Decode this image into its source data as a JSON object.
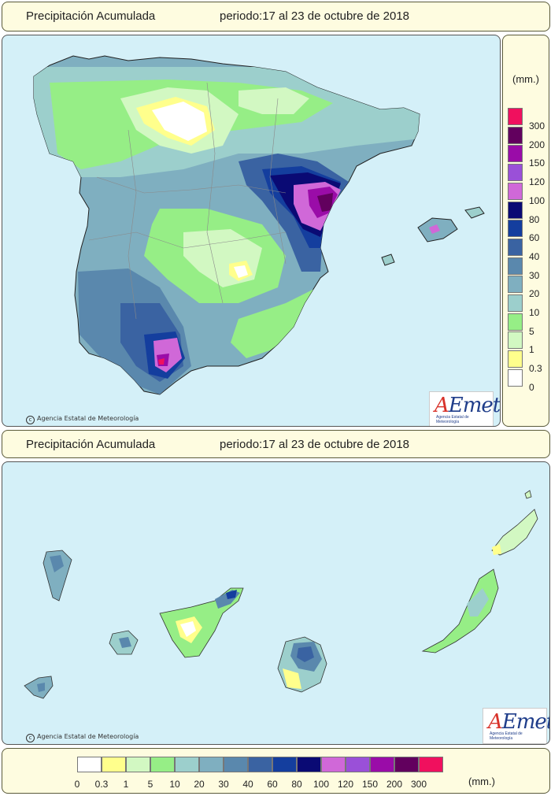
{
  "header": {
    "title": "Precipitación Acumulada",
    "period": "periodo:17 al 23 de octubre de 2018"
  },
  "header2": {
    "title": "Precipitación Acumulada",
    "period": "periodo:17 al 23 de octubre de 2018"
  },
  "credit": "Agencia Estatal de Meteorología",
  "logo": {
    "brand": "AEmet",
    "subtitle": "Agencia Estatal de Meteorología"
  },
  "legend": {
    "unit": "(mm.)",
    "classes": [
      {
        "label": "0",
        "color": "#ffffff"
      },
      {
        "label": "0.3",
        "color": "#ffff8c"
      },
      {
        "label": "1",
        "color": "#d2f8c2"
      },
      {
        "label": "5",
        "color": "#96ee86"
      },
      {
        "label": "10",
        "color": "#9ccfcc"
      },
      {
        "label": "20",
        "color": "#7fafc0"
      },
      {
        "label": "30",
        "color": "#5a88ad"
      },
      {
        "label": "40",
        "color": "#3a63a2"
      },
      {
        "label": "60",
        "color": "#143e9e"
      },
      {
        "label": "80",
        "color": "#0a0a74"
      },
      {
        "label": "100",
        "color": "#d068d8"
      },
      {
        "label": "120",
        "color": "#9a50d8"
      },
      {
        "label": "150",
        "color": "#9a0ca8"
      },
      {
        "label": "200",
        "color": "#62005e"
      },
      {
        "label": "300",
        "color": "#f0105e"
      }
    ]
  },
  "colors": {
    "sea": "#d4f0f8",
    "panel_bg": "#fefce0",
    "border": "#5a5a3a"
  }
}
